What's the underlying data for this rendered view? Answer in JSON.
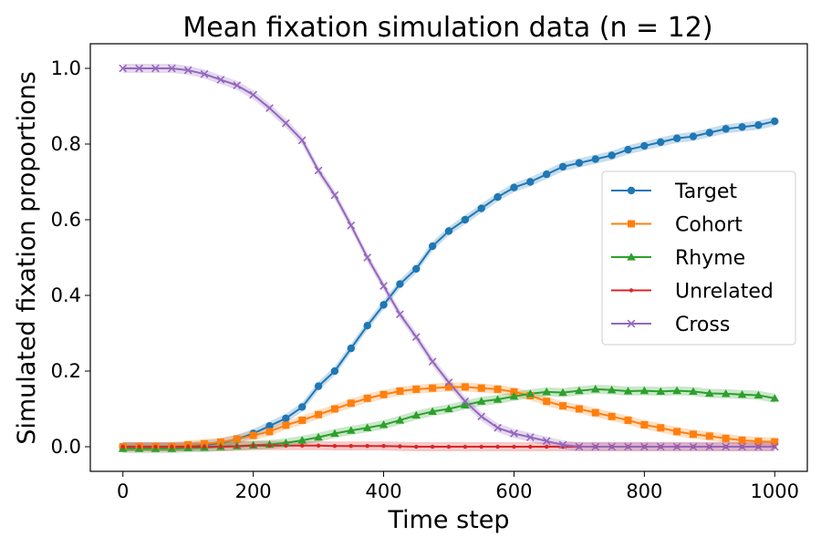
{
  "chart_data": {
    "type": "line",
    "title": "Mean fixation simulation data (n = 12)",
    "xlabel": "Time step",
    "ylabel": "Simulated fixation proportions",
    "xlim": [
      -50,
      1050
    ],
    "ylim": [
      -0.065,
      1.065
    ],
    "xticks": [
      0,
      200,
      400,
      600,
      800,
      1000
    ],
    "yticks": [
      0.0,
      0.2,
      0.4,
      0.6,
      0.8,
      1.0
    ],
    "xtick_labels": [
      "0",
      "200",
      "400",
      "600",
      "800",
      "1000"
    ],
    "ytick_labels": [
      "0.0",
      "0.2",
      "0.4",
      "0.6",
      "0.8",
      "1.0"
    ],
    "grid": false,
    "legend_position": "center-right",
    "shaded_band": "confidence band around each series",
    "x": [
      0,
      25,
      50,
      75,
      100,
      125,
      150,
      175,
      200,
      225,
      250,
      275,
      300,
      325,
      350,
      375,
      400,
      425,
      450,
      475,
      500,
      525,
      550,
      575,
      600,
      625,
      650,
      675,
      700,
      725,
      750,
      775,
      800,
      825,
      850,
      875,
      900,
      925,
      950,
      975,
      1000
    ],
    "series": [
      {
        "name": "Target",
        "color": "#1f77b4",
        "marker": "circle",
        "values": [
          0.0,
          0.0,
          0.0,
          0.0,
          0.0,
          0.005,
          0.01,
          0.02,
          0.035,
          0.055,
          0.075,
          0.105,
          0.16,
          0.2,
          0.26,
          0.32,
          0.375,
          0.43,
          0.47,
          0.53,
          0.57,
          0.6,
          0.63,
          0.66,
          0.685,
          0.7,
          0.72,
          0.74,
          0.75,
          0.76,
          0.77,
          0.785,
          0.795,
          0.805,
          0.815,
          0.82,
          0.83,
          0.84,
          0.845,
          0.85,
          0.86
        ]
      },
      {
        "name": "Cohort",
        "color": "#ff7f0e",
        "marker": "square",
        "values": [
          0.0,
          0.0,
          0.0,
          0.0,
          0.005,
          0.008,
          0.012,
          0.02,
          0.03,
          0.04,
          0.057,
          0.07,
          0.085,
          0.1,
          0.115,
          0.128,
          0.138,
          0.147,
          0.152,
          0.155,
          0.158,
          0.158,
          0.155,
          0.152,
          0.145,
          0.135,
          0.12,
          0.108,
          0.1,
          0.09,
          0.08,
          0.07,
          0.058,
          0.05,
          0.04,
          0.033,
          0.028,
          0.022,
          0.017,
          0.014,
          0.013
        ]
      },
      {
        "name": "Rhyme",
        "color": "#2ca02c",
        "marker": "triangle",
        "values": [
          -0.005,
          -0.005,
          -0.005,
          -0.005,
          -0.003,
          -0.002,
          0.0,
          0.002,
          0.004,
          0.006,
          0.01,
          0.017,
          0.025,
          0.035,
          0.043,
          0.05,
          0.058,
          0.07,
          0.083,
          0.093,
          0.1,
          0.11,
          0.12,
          0.125,
          0.133,
          0.14,
          0.145,
          0.143,
          0.148,
          0.152,
          0.15,
          0.147,
          0.148,
          0.146,
          0.148,
          0.146,
          0.141,
          0.14,
          0.138,
          0.136,
          0.128
        ]
      },
      {
        "name": "Unrelated",
        "color": "#d62728",
        "marker": "dot",
        "values": [
          0.0,
          0.0,
          0.0,
          0.0,
          0.0,
          0.0,
          0.0,
          0.001,
          0.003,
          0.003,
          0.003,
          0.003,
          0.003,
          0.002,
          0.002,
          0.002,
          0.002,
          0.001,
          0.0,
          0.0,
          0.0,
          0.0,
          0.0,
          0.0,
          0.0,
          0.0,
          0.0,
          0.0,
          0.0,
          0.0,
          0.0,
          0.0,
          0.0,
          0.0,
          0.0,
          0.0,
          0.0,
          0.0,
          0.0,
          0.0,
          0.0
        ]
      },
      {
        "name": "Cross",
        "color": "#9467bd",
        "marker": "x",
        "values": [
          1.0,
          1.0,
          1.0,
          1.0,
          0.995,
          0.985,
          0.97,
          0.955,
          0.93,
          0.895,
          0.855,
          0.81,
          0.73,
          0.665,
          0.585,
          0.5,
          0.425,
          0.35,
          0.29,
          0.225,
          0.17,
          0.12,
          0.08,
          0.05,
          0.035,
          0.025,
          0.015,
          0.005,
          0.0,
          0.0,
          0.0,
          0.0,
          0.0,
          0.0,
          0.0,
          0.0,
          0.0,
          0.0,
          0.0,
          0.0,
          0.0
        ]
      }
    ]
  }
}
